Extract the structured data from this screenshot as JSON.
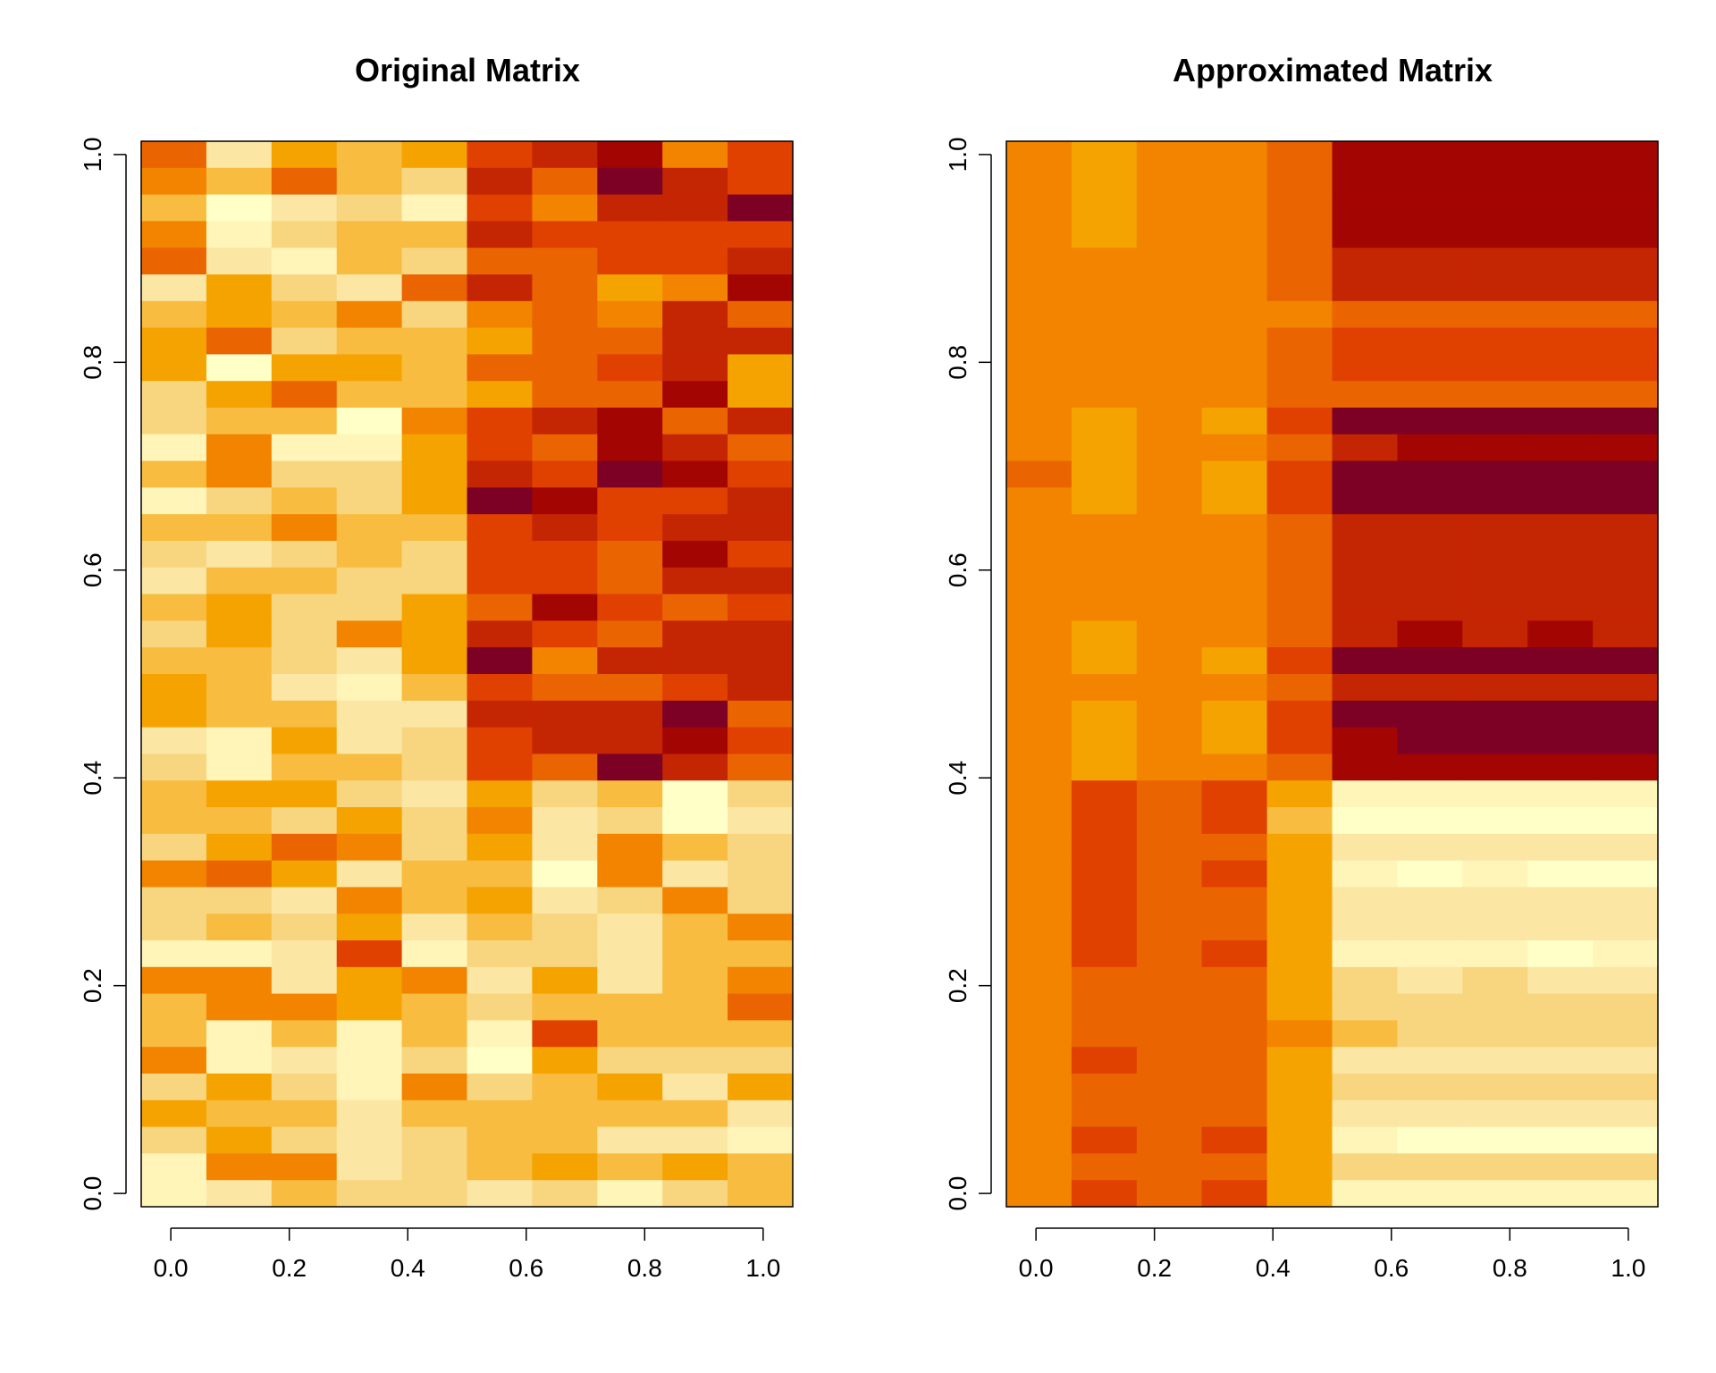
{
  "chart_data": [
    {
      "type": "heatmap",
      "title": "Original Matrix",
      "xlabel": "",
      "ylabel": "",
      "xlim": [
        -0.05,
        1.05
      ],
      "ylim": [
        -0.0128,
        1.0128
      ],
      "x_ticks": [
        "0.0",
        "0.2",
        "0.4",
        "0.6",
        "0.8",
        "1.0"
      ],
      "y_ticks": [
        "0.0",
        "0.2",
        "0.4",
        "0.6",
        "0.8",
        "1.0"
      ],
      "palette": [
        "#FFFFC8",
        "#FFF5B9",
        "#FBE6A4",
        "#F8D680",
        "#F7BC40",
        "#F5A300",
        "#F38400",
        "#EB6402",
        "#E04000",
        "#C42502",
        "#A30503",
        "#7D0025"
      ],
      "n_cols": 10,
      "n_rows": 40,
      "rows_top_to_bottom": [
        [
          7,
          2,
          5,
          4,
          5,
          8,
          9,
          10,
          6,
          8
        ],
        [
          6,
          4,
          7,
          4,
          3,
          9,
          7,
          11,
          9,
          8
        ],
        [
          4,
          0,
          2,
          3,
          1,
          8,
          6,
          9,
          9,
          11
        ],
        [
          6,
          1,
          3,
          4,
          4,
          9,
          8,
          8,
          8,
          8
        ],
        [
          7,
          2,
          1,
          4,
          3,
          7,
          7,
          8,
          8,
          9
        ],
        [
          2,
          5,
          3,
          2,
          7,
          9,
          7,
          5,
          6,
          10
        ],
        [
          4,
          5,
          4,
          6,
          3,
          6,
          7,
          6,
          9,
          7
        ],
        [
          5,
          7,
          3,
          4,
          4,
          5,
          7,
          7,
          9,
          9
        ],
        [
          5,
          0,
          5,
          5,
          4,
          7,
          7,
          8,
          9,
          5
        ],
        [
          3,
          5,
          7,
          4,
          4,
          5,
          7,
          7,
          10,
          5
        ],
        [
          3,
          4,
          4,
          0,
          6,
          8,
          9,
          10,
          7,
          9
        ],
        [
          1,
          6,
          1,
          1,
          5,
          8,
          7,
          10,
          9,
          7
        ],
        [
          4,
          6,
          3,
          3,
          5,
          9,
          8,
          11,
          10,
          8
        ],
        [
          1,
          3,
          4,
          3,
          5,
          11,
          10,
          8,
          8,
          9
        ],
        [
          4,
          4,
          6,
          4,
          4,
          8,
          9,
          8,
          9,
          9
        ],
        [
          3,
          2,
          3,
          4,
          3,
          8,
          8,
          7,
          10,
          8
        ],
        [
          2,
          4,
          4,
          3,
          3,
          8,
          8,
          7,
          9,
          9
        ],
        [
          4,
          5,
          3,
          3,
          5,
          7,
          10,
          8,
          7,
          8
        ],
        [
          3,
          5,
          3,
          6,
          5,
          9,
          8,
          7,
          9,
          9
        ],
        [
          4,
          4,
          3,
          2,
          5,
          11,
          6,
          9,
          9,
          9
        ],
        [
          5,
          4,
          2,
          1,
          4,
          8,
          7,
          7,
          8,
          9
        ],
        [
          5,
          4,
          4,
          2,
          2,
          9,
          9,
          9,
          11,
          7
        ],
        [
          2,
          1,
          5,
          2,
          3,
          8,
          9,
          9,
          10,
          8
        ],
        [
          3,
          1,
          4,
          4,
          3,
          8,
          7,
          11,
          9,
          7
        ],
        [
          4,
          5,
          5,
          3,
          2,
          5,
          3,
          4,
          0,
          3
        ],
        [
          4,
          4,
          3,
          5,
          3,
          6,
          2,
          3,
          0,
          2
        ],
        [
          3,
          5,
          7,
          6,
          3,
          5,
          2,
          6,
          4,
          3
        ],
        [
          6,
          7,
          5,
          2,
          4,
          4,
          0,
          6,
          2,
          3
        ],
        [
          3,
          3,
          2,
          6,
          4,
          5,
          2,
          3,
          6,
          3
        ],
        [
          3,
          4,
          3,
          5,
          2,
          4,
          3,
          2,
          4,
          6
        ],
        [
          1,
          1,
          2,
          8,
          1,
          3,
          3,
          2,
          4,
          4
        ],
        [
          6,
          6,
          2,
          5,
          6,
          2,
          5,
          2,
          4,
          6
        ],
        [
          4,
          6,
          6,
          5,
          4,
          3,
          4,
          4,
          4,
          7
        ],
        [
          4,
          1,
          4,
          1,
          4,
          1,
          8,
          4,
          4,
          4
        ],
        [
          6,
          1,
          2,
          1,
          3,
          0,
          5,
          3,
          3,
          3
        ],
        [
          3,
          5,
          3,
          1,
          6,
          3,
          4,
          5,
          2,
          5
        ],
        [
          5,
          4,
          4,
          2,
          4,
          4,
          4,
          4,
          4,
          2
        ],
        [
          3,
          5,
          3,
          2,
          3,
          4,
          4,
          2,
          2,
          1
        ],
        [
          1,
          6,
          6,
          2,
          3,
          4,
          5,
          4,
          5,
          4
        ],
        [
          1,
          2,
          4,
          3,
          3,
          2,
          3,
          1,
          3,
          4
        ]
      ]
    },
    {
      "type": "heatmap",
      "title": "Approximated Matrix",
      "xlabel": "",
      "ylabel": "",
      "xlim": [
        -0.05,
        1.05
      ],
      "ylim": [
        -0.0128,
        1.0128
      ],
      "x_ticks": [
        "0.0",
        "0.2",
        "0.4",
        "0.6",
        "0.8",
        "1.0"
      ],
      "y_ticks": [
        "0.0",
        "0.2",
        "0.4",
        "0.6",
        "0.8",
        "1.0"
      ],
      "palette": [
        "#FFFFC8",
        "#FFF5B9",
        "#FBE6A4",
        "#F8D680",
        "#F7BC40",
        "#F5A300",
        "#F38400",
        "#EB6402",
        "#E04000",
        "#C42502",
        "#A30503",
        "#7D0025"
      ],
      "n_cols": 10,
      "n_rows": 40,
      "rows_top_to_bottom": [
        [
          6,
          5,
          6,
          6,
          7,
          10,
          10,
          10,
          10,
          10
        ],
        [
          6,
          5,
          6,
          6,
          7,
          10,
          10,
          10,
          10,
          10
        ],
        [
          6,
          5,
          6,
          6,
          7,
          10,
          10,
          10,
          10,
          10
        ],
        [
          6,
          5,
          6,
          6,
          7,
          10,
          10,
          10,
          10,
          10
        ],
        [
          6,
          6,
          6,
          6,
          7,
          9,
          9,
          9,
          9,
          9
        ],
        [
          6,
          6,
          6,
          6,
          7,
          9,
          9,
          9,
          9,
          9
        ],
        [
          6,
          6,
          6,
          6,
          6,
          7,
          7,
          7,
          7,
          7
        ],
        [
          6,
          6,
          6,
          6,
          7,
          8,
          8,
          8,
          8,
          8
        ],
        [
          6,
          6,
          6,
          6,
          7,
          8,
          8,
          8,
          8,
          8
        ],
        [
          6,
          6,
          6,
          6,
          7,
          7,
          7,
          7,
          7,
          7
        ],
        [
          6,
          5,
          6,
          5,
          8,
          11,
          11,
          11,
          11,
          11
        ],
        [
          6,
          5,
          6,
          6,
          7,
          9,
          10,
          10,
          10,
          10
        ],
        [
          7,
          5,
          6,
          5,
          8,
          11,
          11,
          11,
          11,
          11
        ],
        [
          6,
          5,
          6,
          5,
          8,
          11,
          11,
          11,
          11,
          11
        ],
        [
          6,
          6,
          6,
          6,
          7,
          9,
          9,
          9,
          9,
          9
        ],
        [
          6,
          6,
          6,
          6,
          7,
          9,
          9,
          9,
          9,
          9
        ],
        [
          6,
          6,
          6,
          6,
          7,
          9,
          9,
          9,
          9,
          9
        ],
        [
          6,
          6,
          6,
          6,
          7,
          9,
          9,
          9,
          9,
          9
        ],
        [
          6,
          5,
          6,
          6,
          7,
          9,
          10,
          9,
          10,
          9
        ],
        [
          6,
          5,
          6,
          5,
          8,
          11,
          11,
          11,
          11,
          11
        ],
        [
          6,
          6,
          6,
          6,
          7,
          9,
          9,
          9,
          9,
          9
        ],
        [
          6,
          5,
          6,
          5,
          8,
          11,
          11,
          11,
          11,
          11
        ],
        [
          6,
          5,
          6,
          5,
          8,
          10,
          11,
          11,
          11,
          11
        ],
        [
          6,
          5,
          6,
          6,
          7,
          10,
          10,
          10,
          10,
          10
        ],
        [
          6,
          8,
          7,
          8,
          5,
          1,
          1,
          1,
          1,
          1
        ],
        [
          6,
          8,
          7,
          8,
          4,
          0,
          0,
          0,
          0,
          0
        ],
        [
          6,
          8,
          7,
          7,
          5,
          2,
          2,
          2,
          2,
          2
        ],
        [
          6,
          8,
          7,
          8,
          5,
          1,
          0,
          1,
          0,
          0
        ],
        [
          6,
          8,
          7,
          7,
          5,
          2,
          2,
          2,
          2,
          2
        ],
        [
          6,
          8,
          7,
          7,
          5,
          2,
          2,
          2,
          2,
          2
        ],
        [
          6,
          8,
          7,
          8,
          5,
          1,
          1,
          1,
          0,
          1
        ],
        [
          6,
          7,
          7,
          7,
          5,
          3,
          2,
          3,
          2,
          2
        ],
        [
          6,
          7,
          7,
          7,
          5,
          3,
          3,
          3,
          3,
          3
        ],
        [
          6,
          7,
          7,
          7,
          6,
          4,
          3,
          3,
          3,
          3
        ],
        [
          6,
          8,
          7,
          7,
          5,
          2,
          2,
          2,
          2,
          2
        ],
        [
          6,
          7,
          7,
          7,
          5,
          3,
          3,
          3,
          3,
          3
        ],
        [
          6,
          7,
          7,
          7,
          5,
          2,
          2,
          2,
          2,
          2
        ],
        [
          6,
          8,
          7,
          8,
          5,
          1,
          0,
          0,
          0,
          0
        ],
        [
          6,
          7,
          7,
          7,
          5,
          3,
          3,
          3,
          3,
          3
        ],
        [
          6,
          8,
          7,
          8,
          5,
          1,
          1,
          1,
          1,
          1
        ]
      ]
    }
  ]
}
